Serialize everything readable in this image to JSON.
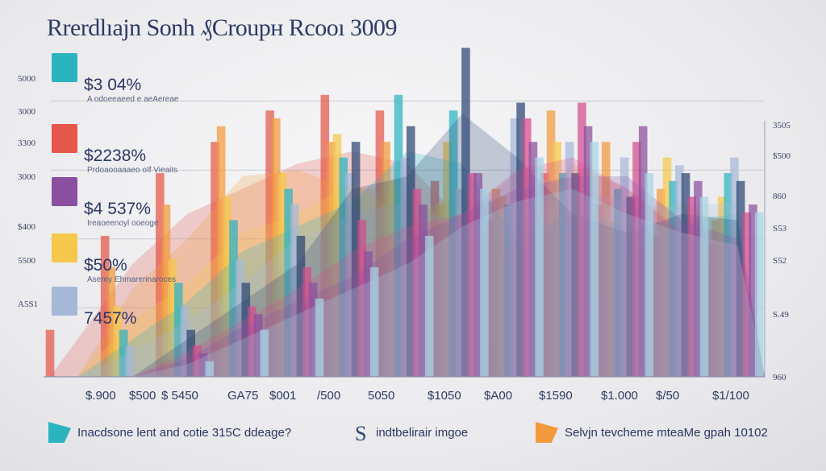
{
  "chart_data": {
    "type": "bar",
    "title": "Rrerdlıajn Sonh ₰Croupн Rcooı 3009",
    "left_axis_ticks": [
      "5000",
      "3000",
      "3300",
      "3000",
      "$400",
      "5500",
      "A5S1"
    ],
    "right_axis_ticks": [
      "3505",
      "$500",
      "860",
      "S53",
      "S52",
      "S.49",
      "960"
    ],
    "categories": [
      "$.900",
      "$500",
      "$ 5450",
      "GA75",
      "$001",
      "/500",
      "5050",
      "$1050",
      "$A00",
      "$1590",
      "$1.000",
      "$/50",
      "$1/100"
    ],
    "series": [
      {
        "values": [
          60,
          180,
          260,
          300,
          340,
          360,
          340,
          250,
          200,
          260,
          220,
          180,
          170
        ],
        "color": "#e4574a"
      },
      {
        "values": [
          0,
          140,
          220,
          320,
          330,
          300,
          300,
          220,
          240,
          340,
          300,
          240,
          200
        ],
        "color": "#f39a3c"
      },
      {
        "values": [
          0,
          90,
          150,
          230,
          260,
          310,
          250,
          300,
          230,
          300,
          200,
          280,
          230
        ],
        "color": "#f5c84b"
      },
      {
        "values": [
          0,
          60,
          120,
          200,
          240,
          280,
          360,
          340,
          220,
          260,
          240,
          250,
          260
        ],
        "color": "#2bb3c0"
      },
      {
        "values": [
          0,
          40,
          90,
          150,
          220,
          260,
          280,
          240,
          330,
          300,
          280,
          270,
          280
        ],
        "color": "#a6b8d8"
      },
      {
        "values": [
          0,
          0,
          60,
          120,
          180,
          300,
          320,
          420,
          350,
          260,
          230,
          260,
          250
        ],
        "color": "#2c4573"
      },
      {
        "values": [
          0,
          0,
          40,
          90,
          140,
          200,
          240,
          260,
          330,
          350,
          300,
          230,
          210
        ],
        "color": "#d24c8e"
      },
      {
        "values": [
          0,
          0,
          30,
          80,
          120,
          160,
          220,
          260,
          300,
          320,
          320,
          250,
          220
        ],
        "color": "#8a4f9e"
      },
      {
        "values": [
          0,
          0,
          20,
          60,
          100,
          140,
          180,
          240,
          280,
          300,
          260,
          230,
          210
        ],
        "color": "#a7d4e4"
      }
    ],
    "callouts": [
      {
        "value": "$3 04%",
        "sub": "A odoeeaeed e aeAereae",
        "color": "#2bb3c0"
      },
      {
        "value": "$2238%",
        "sub": "Prdoaooaaaeo oIf Vieaits",
        "color": "#e4574a"
      },
      {
        "value": "$4 537%",
        "sub": "Ireaoeenoyl ooeoge",
        "color": "#8a4f9e"
      },
      {
        "value": "$50%",
        "sub": "Aserey Ehmarerinaroces",
        "color": "#f5c84b"
      },
      {
        "value": "7457%",
        "sub": "",
        "color": "#a6b8d8"
      }
    ],
    "legend": [
      {
        "label": "Inacdsone lent and cotie 315C ddeage?",
        "color": "#2bb3c0"
      },
      {
        "label": "indtbelirair imgoe",
        "glyph": "S",
        "color": "#2c4573"
      },
      {
        "label": "Selvjn tevcheme mteaMe gpah 10102",
        "color": "#f39a3c"
      }
    ],
    "ylim": [
      0,
      440
    ],
    "grid": true
  }
}
